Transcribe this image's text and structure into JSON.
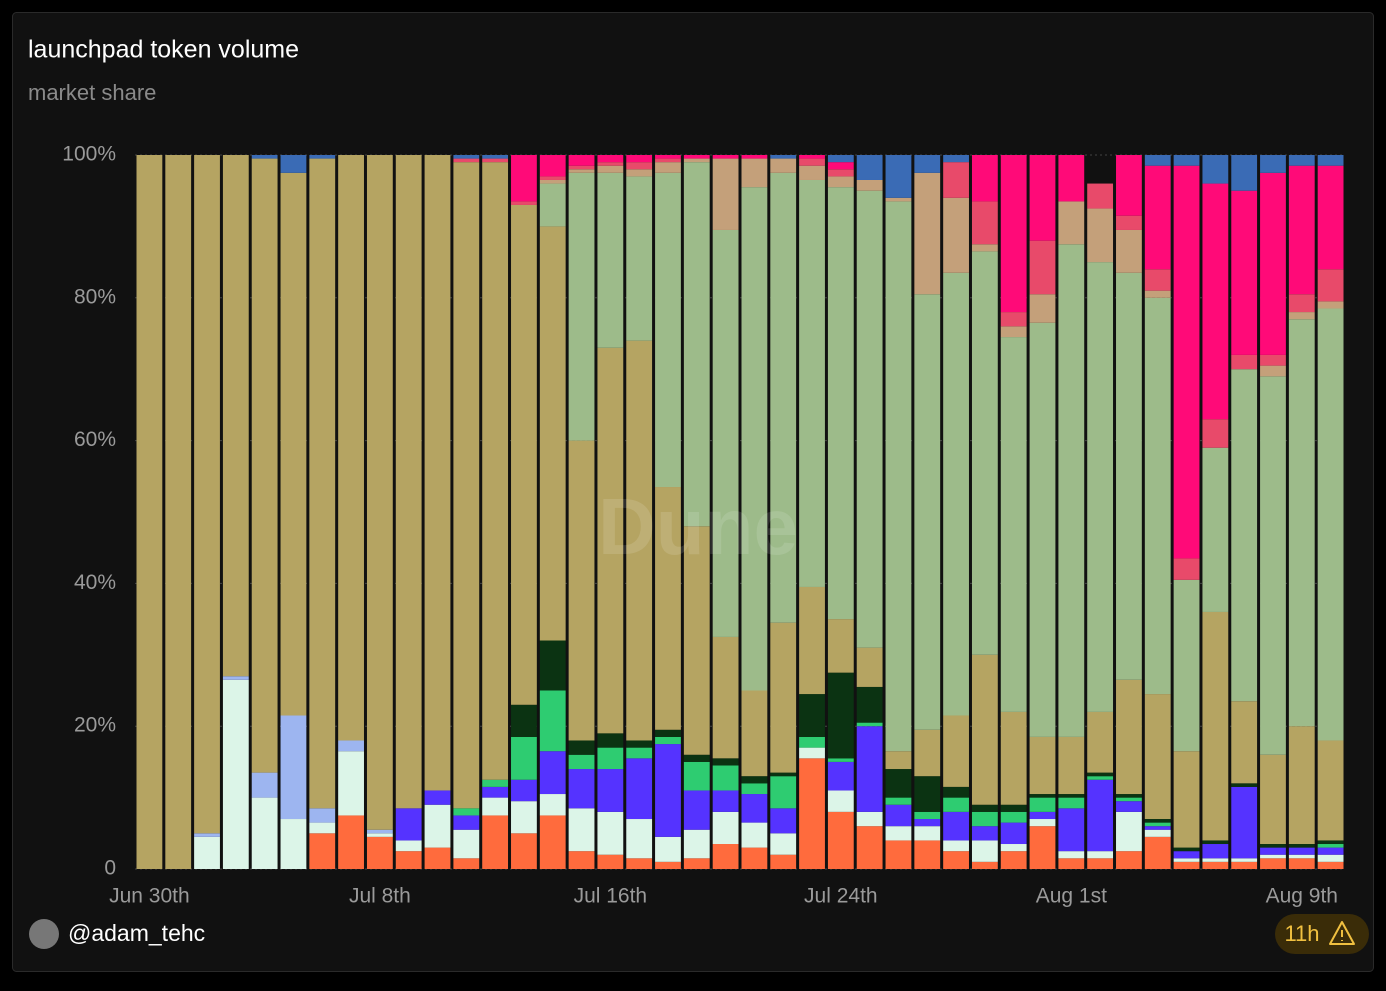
{
  "chart_data": {
    "type": "stacked_bar",
    "title": "launchpad token volume",
    "subtitle": "market share",
    "watermark": "Dune",
    "author": "@adam_tehc",
    "badge": "11h",
    "categories": [
      "Jun 30th",
      null,
      null,
      null,
      null,
      null,
      null,
      null,
      "Jul 8th",
      null,
      null,
      null,
      null,
      null,
      null,
      null,
      "Jul 16th",
      null,
      null,
      null,
      null,
      null,
      null,
      null,
      "Jul 24th",
      null,
      null,
      null,
      null,
      null,
      null,
      null,
      "Aug 1st",
      null,
      null,
      null,
      null,
      null,
      null,
      null,
      "Aug 9th",
      null
    ],
    "ylim": [
      0,
      100
    ],
    "yticks": [
      0,
      {
        "value": 20,
        "label": "20%"
      },
      {
        "value": 40,
        "label": "40%"
      },
      {
        "value": 60,
        "label": "60%"
      },
      {
        "value": 80,
        "label": "80%"
      },
      {
        "value": 100,
        "label": "100%"
      }
    ],
    "grid": true,
    "series": [
      {
        "color": "#ff6b3d",
        "values": [
          0,
          0,
          0,
          0,
          0,
          0,
          5,
          7.5,
          4.5,
          2.5,
          3,
          1.5,
          7.5,
          5,
          7.5,
          2.5,
          2,
          1.5,
          1,
          1.5,
          3.5,
          3,
          2,
          15.5,
          8,
          6,
          4,
          4,
          2.5,
          1,
          2.5,
          6,
          1.5,
          1.5,
          2.5,
          4.5,
          1,
          1,
          1,
          1.5,
          1.5,
          1
        ]
      },
      {
        "color": "#dcf5e8",
        "values": [
          0,
          0,
          4.5,
          26.5,
          10,
          7,
          1.5,
          9,
          0.5,
          1.5,
          6,
          4,
          2.5,
          4.5,
          3,
          6,
          6,
          5.5,
          3.5,
          4,
          4.5,
          3.5,
          3,
          1.5,
          3,
          2,
          2,
          2,
          1.5,
          3,
          1,
          1,
          1,
          1,
          5.5,
          1,
          0.5,
          0.5,
          0.5,
          0.5,
          0.5,
          1
        ]
      },
      {
        "color": "#9db5f0",
        "values": [
          0,
          0,
          0.5,
          0.5,
          3.5,
          14.5,
          2,
          1.5,
          0.5,
          0,
          0,
          0,
          0,
          0,
          0,
          0,
          0,
          0,
          0,
          0,
          0,
          0,
          0,
          0,
          0,
          0,
          0,
          0,
          0,
          0,
          0,
          0,
          0,
          0,
          0,
          0,
          0,
          0,
          0,
          0,
          0,
          0
        ]
      },
      {
        "color": "#5533ff",
        "values": [
          0,
          0,
          0,
          0,
          0,
          0,
          0,
          0,
          0,
          4.5,
          2,
          2,
          1.5,
          3,
          6,
          5.5,
          6,
          8.5,
          13,
          5.5,
          3,
          4,
          3.5,
          0,
          4,
          12,
          3,
          1,
          4,
          2,
          3,
          1,
          6,
          10,
          1.5,
          0.5,
          1,
          2,
          10,
          1,
          1,
          1
        ]
      },
      {
        "color": "#2ecc71",
        "values": [
          0,
          0,
          0,
          0,
          0,
          0,
          0,
          0,
          0,
          0,
          0,
          1,
          1,
          6,
          8.5,
          2,
          3,
          1.5,
          1,
          4,
          3.5,
          1.5,
          4.5,
          1.5,
          0.5,
          0.5,
          1,
          1,
          2,
          2,
          1.5,
          2,
          1.5,
          0.5,
          0.5,
          0.5,
          0,
          0,
          0,
          0,
          0,
          0.5
        ]
      },
      {
        "color": "#0b3312",
        "values": [
          0,
          0,
          0,
          0,
          0,
          0,
          0,
          0,
          0,
          0,
          0,
          0,
          0,
          4.5,
          7,
          2,
          2,
          1,
          1,
          1,
          1,
          1,
          0.5,
          6,
          12,
          5,
          4,
          5,
          1.5,
          1,
          1,
          0.5,
          0.5,
          0.5,
          0.5,
          0.5,
          0.5,
          0.5,
          0.5,
          0.5,
          0.5,
          0.5
        ]
      },
      {
        "color": "#b5a462",
        "values": [
          100,
          100,
          95,
          73,
          86,
          76,
          91,
          82,
          94.5,
          91.5,
          89,
          90.5,
          86.5,
          70,
          58,
          42,
          54,
          56,
          34,
          32,
          17,
          12,
          21,
          15,
          7.5,
          5.5,
          2.5,
          6.5,
          10,
          21,
          13,
          8,
          8,
          8.5,
          16,
          17.5,
          13.5,
          32,
          11.5,
          12.5,
          16.5,
          14
        ]
      },
      {
        "color": "#9dbb8a",
        "values": [
          0,
          0,
          0,
          0,
          0,
          0,
          0,
          0,
          0,
          0,
          0,
          0,
          0,
          0,
          6,
          37.5,
          24.5,
          23,
          44,
          51,
          57,
          70.5,
          63,
          57,
          60.5,
          64,
          77,
          61,
          62,
          56.5,
          52.5,
          58,
          69,
          63,
          57,
          55.5,
          24,
          23,
          46.5,
          53,
          57,
          60.5
        ]
      },
      {
        "color": "#c4a07a",
        "values": [
          0,
          0,
          0,
          0,
          0,
          0,
          0,
          0,
          0,
          0,
          0,
          0,
          0,
          0,
          0.5,
          0.5,
          1,
          1,
          1.5,
          0.5,
          10,
          4,
          2,
          2,
          1.5,
          1.5,
          0.5,
          17,
          10.5,
          1,
          1.5,
          4,
          6,
          7.5,
          6,
          1,
          0,
          0,
          0,
          1.5,
          1,
          1
        ]
      },
      {
        "color": "#e84a6a",
        "values": [
          0,
          0,
          0,
          0,
          0,
          0,
          0,
          0,
          0,
          0,
          0,
          0.5,
          0.5,
          0.5,
          0.5,
          0.5,
          0.5,
          1,
          0.5,
          0,
          0,
          0,
          0,
          1,
          1,
          0,
          0,
          0,
          5,
          6,
          2,
          7.5,
          0,
          3.5,
          2,
          3,
          3,
          4,
          2,
          1.5,
          2.5,
          4.5
        ]
      },
      {
        "color": "#ff0a78",
        "values": [
          0,
          0,
          0,
          0,
          0,
          0,
          0,
          0,
          0,
          0,
          0,
          0,
          0,
          6.5,
          3,
          1.5,
          1,
          1,
          0.5,
          0.5,
          0.5,
          0.5,
          0,
          0.5,
          1,
          0,
          0,
          0,
          0,
          6.5,
          22,
          12,
          6.5,
          0,
          8.5,
          14.5,
          55,
          33,
          23,
          25.5,
          18,
          14.5
        ]
      },
      {
        "color": "#3a6bb5",
        "values": [
          0,
          0,
          0,
          0,
          0.5,
          2.5,
          0.5,
          0,
          0,
          0,
          0,
          0.5,
          0.5,
          0,
          0,
          0,
          0,
          0,
          0,
          0,
          0,
          0,
          0.5,
          0,
          1,
          3.5,
          6,
          2.5,
          1,
          0,
          0,
          0,
          0,
          0,
          0,
          1.5,
          1.5,
          4,
          5,
          2.5,
          1.5,
          1.5
        ]
      }
    ]
  }
}
